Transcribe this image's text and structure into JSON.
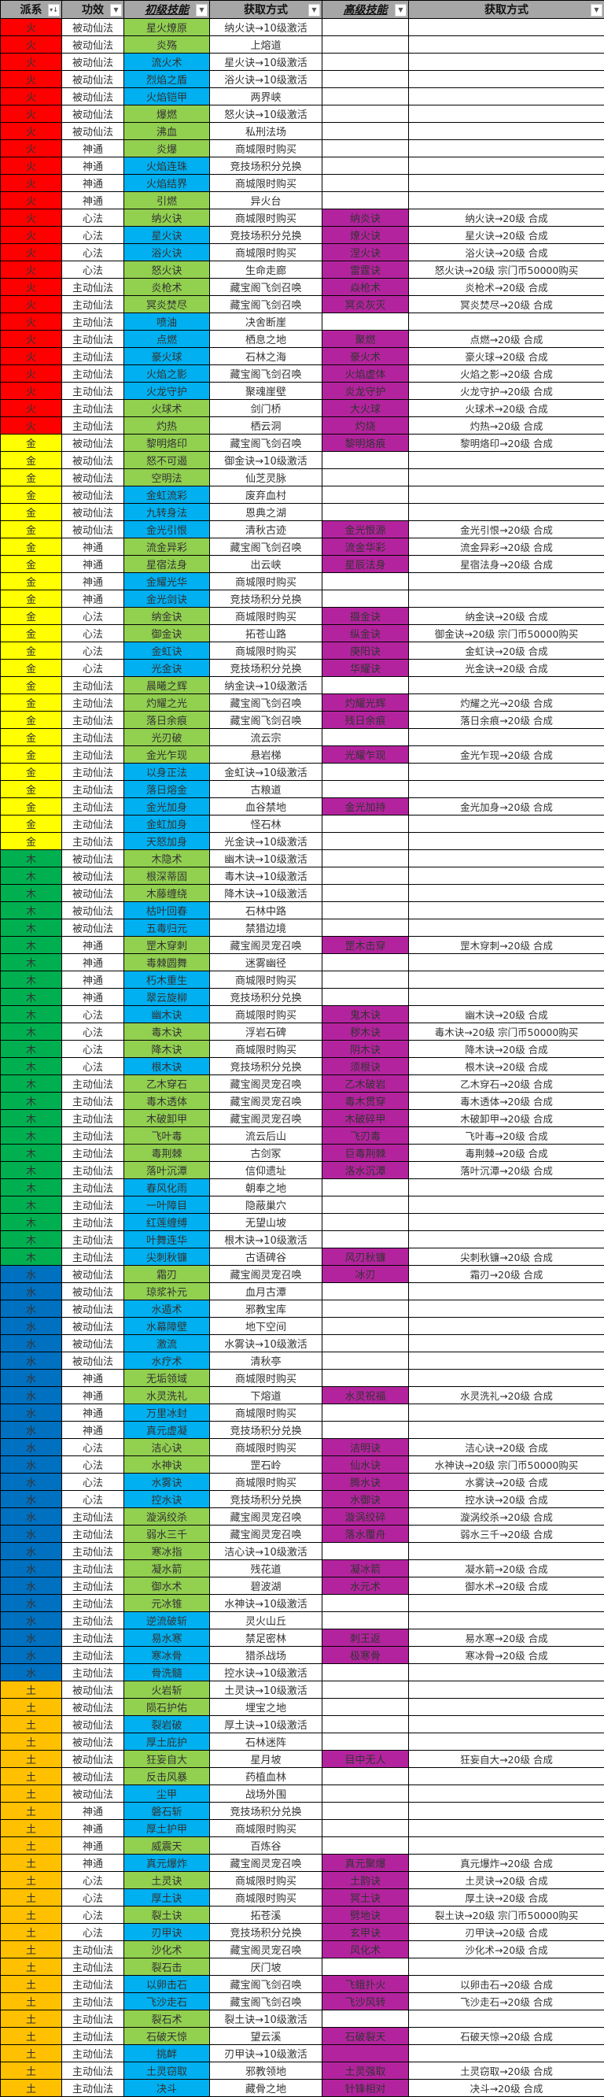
{
  "header": [
    "派系",
    "功效",
    "初级技能",
    "获取方式",
    "高级技能",
    "获取方式"
  ],
  "header_icons": [
    "sort-filter-icon",
    "dropdown-arrow-icon",
    "dropdown-arrow-icon",
    "dropdown-arrow-icon",
    "dropdown-arrow-icon",
    "dropdown-arrow-icon"
  ],
  "colors": {
    "header_bg": "#A6A6A6",
    "faction": {
      "火": "#FF0000",
      "金": "#FFFF00",
      "木": "#00B050",
      "水": "#0070C0",
      "土": "#FFC000"
    },
    "skill": {
      "g": "#92D050",
      "b": "#00B0F0"
    },
    "advanced": "#B4239E"
  },
  "rows": [
    [
      "火",
      "被动仙法",
      "星火燎原",
      "g",
      "纳火诀→10级激活",
      "",
      "",
      ""
    ],
    [
      "火",
      "被动仙法",
      "炎殇",
      "g",
      "上熔道",
      "",
      "",
      ""
    ],
    [
      "火",
      "被动仙法",
      "流火术",
      "b",
      "星火诀→10级激活",
      "",
      "",
      ""
    ],
    [
      "火",
      "被动仙法",
      "烈焰之盾",
      "b",
      "浴火诀→10级激活",
      "",
      "",
      ""
    ],
    [
      "火",
      "被动仙法",
      "火焰铠甲",
      "b",
      "两界峡",
      "",
      "",
      ""
    ],
    [
      "火",
      "被动仙法",
      "爆燃",
      "g",
      "怒火诀→10级激活",
      "",
      "",
      ""
    ],
    [
      "火",
      "被动仙法",
      "沸血",
      "g",
      "私刑法场",
      "",
      "",
      ""
    ],
    [
      "火",
      "神通",
      "炎爆",
      "g",
      "商城限时购买",
      "",
      "",
      ""
    ],
    [
      "火",
      "神通",
      "火焰连珠",
      "b",
      "竞技场积分兑换",
      "",
      "",
      ""
    ],
    [
      "火",
      "神通",
      "火焰结界",
      "b",
      "商城限时购买",
      "",
      "",
      ""
    ],
    [
      "火",
      "神通",
      "引燃",
      "g",
      "异火台",
      "",
      "",
      ""
    ],
    [
      "火",
      "心法",
      "纳火诀",
      "g",
      "商城限时购买",
      "纳炎诀",
      "纳火诀→20级 合成",
      "p"
    ],
    [
      "火",
      "心法",
      "星火诀",
      "b",
      "竞技场积分兑换",
      "燎火诀",
      "星火诀→20级 合成",
      "p"
    ],
    [
      "火",
      "心法",
      "浴火诀",
      "b",
      "商城限时购买",
      "涅火诀",
      "浴火诀→20级 合成",
      "p"
    ],
    [
      "火",
      "心法",
      "怒火诀",
      "g",
      "生命走廊",
      "雷霆诀",
      "怒火诀→20级 宗门币50000购买",
      "p"
    ],
    [
      "火",
      "主动仙法",
      "炎枪术",
      "g",
      "藏宝阁飞剑召唤",
      "焱枪术",
      "炎枪术→20级 合成",
      "p"
    ],
    [
      "火",
      "主动仙法",
      "冥炎焚尽",
      "g",
      "藏宝阁飞剑召唤",
      "冥炎灰灭",
      "冥炎焚尽→20级 合成",
      "p"
    ],
    [
      "火",
      "主动仙法",
      "喷油",
      "b",
      "决舍断崖",
      "",
      "",
      ""
    ],
    [
      "火",
      "主动仙法",
      "点燃",
      "b",
      "栖息之地",
      "聚燃",
      "点燃→20级 合成",
      "p"
    ],
    [
      "火",
      "主动仙法",
      "豪火球",
      "b",
      "石林之海",
      "豪火术",
      "豪火球→20级 合成",
      "p"
    ],
    [
      "火",
      "主动仙法",
      "火焰之影",
      "b",
      "藏宝阁飞剑召唤",
      "火焰虚体",
      "火焰之影→20级 合成",
      "p"
    ],
    [
      "火",
      "主动仙法",
      "火龙守护",
      "b",
      "聚魂崖壁",
      "炎龙守护",
      "火龙守护→20级 合成",
      "p"
    ],
    [
      "火",
      "主动仙法",
      "火球术",
      "g",
      "剑门桥",
      "大火球",
      "火球术→20级 合成",
      "p"
    ],
    [
      "火",
      "主动仙法",
      "灼热",
      "g",
      "栖云洞",
      "灼烧",
      "灼热→20级 合成",
      "p"
    ],
    [
      "金",
      "被动仙法",
      "黎明烙印",
      "g",
      "藏宝阁飞剑召唤",
      "黎明烙痕",
      "黎明烙印→20级 合成",
      "p"
    ],
    [
      "金",
      "被动仙法",
      "怒不可遏",
      "g",
      "御金诀→10级激活",
      "",
      "",
      ""
    ],
    [
      "金",
      "被动仙法",
      "空明法",
      "g",
      "仙芝灵脉",
      "",
      "",
      ""
    ],
    [
      "金",
      "被动仙法",
      "金虹流彩",
      "b",
      "废弃血村",
      "",
      "",
      ""
    ],
    [
      "金",
      "被动仙法",
      "九转身法",
      "b",
      "恩典之湖",
      "",
      "",
      ""
    ],
    [
      "金",
      "被动仙法",
      "金光引恨",
      "b",
      "清秋古迹",
      "金光恨源",
      "金光引恨→20级 合成",
      "p"
    ],
    [
      "金",
      "神通",
      "流金异彩",
      "g",
      "藏宝阁飞剑召唤",
      "流金华彩",
      "流金异彩→20级 合成",
      "p"
    ],
    [
      "金",
      "神通",
      "星宿法身",
      "g",
      "出云峡",
      "星辰法身",
      "星宿法身→20级 合成",
      "p"
    ],
    [
      "金",
      "神通",
      "金耀光华",
      "b",
      "商城限时购买",
      "",
      "",
      ""
    ],
    [
      "金",
      "神通",
      "金光剑诀",
      "b",
      "竞技场积分兑换",
      "",
      "",
      ""
    ],
    [
      "金",
      "心法",
      "纳金诀",
      "g",
      "商城限时购买",
      "摄金诀",
      "纳金诀→20级 合成",
      "p"
    ],
    [
      "金",
      "心法",
      "御金诀",
      "g",
      "拓苍山路",
      "纵金诀",
      "御金诀→20级 宗门币50000购买",
      "p"
    ],
    [
      "金",
      "心法",
      "金虹诀",
      "b",
      "商城限时购买",
      "庚阳诀",
      "金虹诀→20级 合成",
      "p"
    ],
    [
      "金",
      "心法",
      "光金诀",
      "b",
      "竞技场积分兑换",
      "华耀诀",
      "光金诀→20级 合成",
      "p"
    ],
    [
      "金",
      "主动仙法",
      "晨曦之辉",
      "g",
      "纳金诀→10级激活",
      "",
      "",
      ""
    ],
    [
      "金",
      "主动仙法",
      "灼耀之光",
      "g",
      "藏宝阁飞剑召唤",
      "灼耀光辉",
      "灼耀之光→20级 合成",
      "p"
    ],
    [
      "金",
      "主动仙法",
      "落日余痕",
      "g",
      "藏宝阁飞剑召唤",
      "残日余痕",
      "落日余痕→20级 合成",
      "p"
    ],
    [
      "金",
      "主动仙法",
      "光刃破",
      "g",
      "流云宗",
      "",
      "",
      ""
    ],
    [
      "金",
      "主动仙法",
      "金光乍现",
      "g",
      "悬岩梯",
      "光耀乍现",
      "金光乍现→20级 合成",
      "p"
    ],
    [
      "金",
      "主动仙法",
      "以身正法",
      "b",
      "金虹诀→10级激活",
      "",
      "",
      ""
    ],
    [
      "金",
      "主动仙法",
      "落日熔金",
      "b",
      "古粮道",
      "",
      "",
      ""
    ],
    [
      "金",
      "主动仙法",
      "金光加身",
      "b",
      "血谷禁地",
      "金光加持",
      "金光加身→20级 合成",
      "p"
    ],
    [
      "金",
      "主动仙法",
      "金虹加身",
      "b",
      "怪石林",
      "",
      "",
      ""
    ],
    [
      "金",
      "主动仙法",
      "天怒加身",
      "b",
      "光金诀→10级激活",
      "",
      "",
      ""
    ],
    [
      "木",
      "被动仙法",
      "木隐术",
      "g",
      "幽木诀→10级激活",
      "",
      "",
      ""
    ],
    [
      "木",
      "被动仙法",
      "根深蒂固",
      "g",
      "毒木诀→10级激活",
      "",
      "",
      ""
    ],
    [
      "木",
      "被动仙法",
      "木藤缠绕",
      "g",
      "降木诀→10级激活",
      "",
      "",
      ""
    ],
    [
      "木",
      "被动仙法",
      "枯叶回春",
      "b",
      "石林中路",
      "",
      "",
      ""
    ],
    [
      "木",
      "被动仙法",
      "五毒归元",
      "b",
      "禁猎边境",
      "",
      "",
      ""
    ],
    [
      "木",
      "神通",
      "罡木穿刺",
      "g",
      "藏宝阁灵宠召唤",
      "罡木击穿",
      "罡木穿刺→20级 合成",
      "p"
    ],
    [
      "木",
      "神通",
      "毒棘圆舞",
      "g",
      "迷雾幽径",
      "",
      "",
      ""
    ],
    [
      "木",
      "神通",
      "朽木重生",
      "b",
      "商城限时购买",
      "",
      "",
      ""
    ],
    [
      "木",
      "神通",
      "翠云旋柳",
      "b",
      "竞技场积分兑换",
      "",
      "",
      ""
    ],
    [
      "木",
      "心法",
      "幽木诀",
      "b",
      "商城限时购买",
      "鬼木诀",
      "幽木诀→20级 合成",
      "p"
    ],
    [
      "木",
      "心法",
      "毒木诀",
      "g",
      "浮岩石碑",
      "秽木诀",
      "毒木诀→20级 宗门币50000购买",
      "p"
    ],
    [
      "木",
      "心法",
      "降木诀",
      "g",
      "商城限时购买",
      "阴木诀",
      "降木诀→20级 合成",
      "p"
    ],
    [
      "木",
      "心法",
      "根木诀",
      "b",
      "竞技场积分兑换",
      "须根诀",
      "根木诀→20级 合成",
      "p"
    ],
    [
      "木",
      "主动仙法",
      "乙木穿石",
      "g",
      "藏宝阁灵宠召唤",
      "乙木破岩",
      "乙木穿石→20级 合成",
      "p"
    ],
    [
      "木",
      "主动仙法",
      "毒木透体",
      "g",
      "藏宝阁灵宠召唤",
      "毒木贯穿",
      "毒木透体→20级 合成",
      "p"
    ],
    [
      "木",
      "主动仙法",
      "木破卸甲",
      "g",
      "藏宝阁灵宠召唤",
      "木破碎甲",
      "木破卸甲→20级 合成",
      "p"
    ],
    [
      "木",
      "主动仙法",
      "飞叶毒",
      "g",
      "流云后山",
      "飞刃毒",
      "飞叶毒→20级 合成",
      "p"
    ],
    [
      "木",
      "主动仙法",
      "毒荆棘",
      "g",
      "古剑冢",
      "巨毒荆棘",
      "毒荆棘→20级 合成",
      "p"
    ],
    [
      "木",
      "主动仙法",
      "落叶沉潭",
      "g",
      "信仰遗址",
      "洛水沉潭",
      "落叶沉潭→20级 合成",
      "p"
    ],
    [
      "木",
      "主动仙法",
      "春风化雨",
      "b",
      "朝奉之地",
      "",
      "",
      ""
    ],
    [
      "木",
      "主动仙法",
      "一叶障目",
      "b",
      "隐蔽巢穴",
      "",
      "",
      ""
    ],
    [
      "木",
      "主动仙法",
      "红莲缠缚",
      "b",
      "无望山坡",
      "",
      "",
      ""
    ],
    [
      "木",
      "主动仙法",
      "叶舞连华",
      "b",
      "根木诀→10级激活",
      "",
      "",
      ""
    ],
    [
      "木",
      "主动仙法",
      "尖刺秋镰",
      "b",
      "古语碑谷",
      "风刃秋镰",
      "尖刺秋镰→20级 合成",
      "p"
    ],
    [
      "水",
      "被动仙法",
      "霜刃",
      "g",
      "藏宝阁灵宠召唤",
      "冰刃",
      "霜刃→20级 合成",
      "p"
    ],
    [
      "水",
      "被动仙法",
      "琼浆补元",
      "g",
      "血月古潭",
      "",
      "",
      ""
    ],
    [
      "水",
      "被动仙法",
      "水遁术",
      "b",
      "邪教宝库",
      "",
      "",
      ""
    ],
    [
      "水",
      "被动仙法",
      "水幕障壁",
      "b",
      "地下空间",
      "",
      "",
      ""
    ],
    [
      "水",
      "被动仙法",
      "激流",
      "b",
      "水雾诀→10级激活",
      "",
      "",
      ""
    ],
    [
      "水",
      "被动仙法",
      "水疗术",
      "b",
      "清秋亭",
      "",
      "",
      ""
    ],
    [
      "水",
      "神通",
      "无垢领域",
      "g",
      "商城限时购买",
      "",
      "",
      ""
    ],
    [
      "水",
      "神通",
      "水灵洗礼",
      "g",
      "下熔道",
      "水灵祝福",
      "水灵洗礼→20级 合成",
      "p"
    ],
    [
      "水",
      "神通",
      "万里冰封",
      "b",
      "商城限时购买",
      "",
      "",
      ""
    ],
    [
      "水",
      "神通",
      "真元虚凝",
      "b",
      "竞技场积分兑换",
      "",
      "",
      ""
    ],
    [
      "水",
      "心法",
      "洁心诀",
      "g",
      "商城限时购买",
      "洁明诀",
      "洁心诀→20级 合成",
      "p"
    ],
    [
      "水",
      "心法",
      "水神诀",
      "g",
      "罡石岭",
      "仙水诀",
      "水神诀→20级 宗门币50000购买",
      "p"
    ],
    [
      "水",
      "心法",
      "水雾诀",
      "b",
      "商城限时购买",
      "腾水诀",
      "水雾诀→20级 合成",
      "p"
    ],
    [
      "水",
      "心法",
      "控水诀",
      "b",
      "竞技场积分兑换",
      "水御诀",
      "控水诀→20级 合成",
      "p"
    ],
    [
      "水",
      "主动仙法",
      "漩涡绞杀",
      "g",
      "藏宝阁灵宠召唤",
      "漩涡绞碎",
      "漩涡绞杀→20级 合成",
      "p"
    ],
    [
      "水",
      "主动仙法",
      "弱水三千",
      "g",
      "藏宝阁灵宠召唤",
      "落水覆舟",
      "弱水三千→20级 合成",
      "p"
    ],
    [
      "水",
      "主动仙法",
      "寒冰指",
      "g",
      "洁心诀→10级激活",
      "",
      "",
      ""
    ],
    [
      "水",
      "主动仙法",
      "凝水箭",
      "g",
      "残花道",
      "凝冰箭",
      "凝水箭→20级 合成",
      "p"
    ],
    [
      "水",
      "主动仙法",
      "御水术",
      "g",
      "碧波湖",
      "水元术",
      "御水术→20级 合成",
      "p"
    ],
    [
      "水",
      "主动仙法",
      "元冰锥",
      "g",
      "水神诀→10级激活",
      "",
      "",
      ""
    ],
    [
      "水",
      "主动仙法",
      "逆流破斩",
      "b",
      "灵火山丘",
      "",
      "",
      ""
    ],
    [
      "水",
      "主动仙法",
      "易水寒",
      "b",
      "禁足密林",
      "刺王返",
      "易水寒→20级 合成",
      "p"
    ],
    [
      "水",
      "主动仙法",
      "寒冰骨",
      "b",
      "猎杀战场",
      "极寒骨",
      "寒冰骨→20级 合成",
      "p"
    ],
    [
      "水",
      "主动仙法",
      "骨洗髓",
      "b",
      "控水诀→10级激活",
      "",
      "",
      ""
    ],
    [
      "土",
      "被动仙法",
      "火岩斩",
      "g",
      "土灵诀→10级激活",
      "",
      "",
      ""
    ],
    [
      "土",
      "被动仙法",
      "陨石护佑",
      "g",
      "埋宝之地",
      "",
      "",
      ""
    ],
    [
      "土",
      "被动仙法",
      "裂岩破",
      "b",
      "厚土诀→10级激活",
      "",
      "",
      ""
    ],
    [
      "土",
      "被动仙法",
      "厚土庇护",
      "b",
      "石林迷阵",
      "",
      "",
      ""
    ],
    [
      "土",
      "被动仙法",
      "狂妄自大",
      "g",
      "星月坡",
      "目中无人",
      "狂妄自大→20级 合成",
      "p"
    ],
    [
      "土",
      "被动仙法",
      "反击风暴",
      "g",
      "药植血林",
      "",
      "",
      ""
    ],
    [
      "土",
      "被动仙法",
      "尘甲",
      "b",
      "战场外围",
      "",
      "",
      ""
    ],
    [
      "土",
      "神通",
      "磐石斩",
      "b",
      "竞技场积分兑换",
      "",
      "",
      ""
    ],
    [
      "土",
      "神通",
      "厚土护甲",
      "b",
      "商城限时购买",
      "",
      "",
      ""
    ],
    [
      "土",
      "神通",
      "威震天",
      "g",
      "百炼谷",
      "",
      "",
      ""
    ],
    [
      "土",
      "神通",
      "真元爆炸",
      "b",
      "藏宝阁灵宠召唤",
      "真元聚爆",
      "真元爆炸→20级 合成",
      "p"
    ],
    [
      "土",
      "心法",
      "土灵诀",
      "g",
      "商城限时购买",
      "土韵诀",
      "土灵诀→20级 合成",
      "p"
    ],
    [
      "土",
      "心法",
      "厚土诀",
      "b",
      "商城限时购买",
      "冥土诀",
      "厚土诀→20级 合成",
      "p"
    ],
    [
      "土",
      "心法",
      "裂土诀",
      "g",
      "拓苍溪",
      "劈地诀",
      "裂土诀→20级 宗门币50000购买",
      "p"
    ],
    [
      "土",
      "心法",
      "刃甲诀",
      "b",
      "竞技场积分兑换",
      "玄甲诀",
      "刃甲诀→20级 合成",
      "p"
    ],
    [
      "土",
      "主动仙法",
      "沙化术",
      "g",
      "藏宝阁灵宠召唤",
      "风化术",
      "沙化术→20级 合成",
      "p"
    ],
    [
      "土",
      "主动仙法",
      "裂石击",
      "g",
      "厌门坡",
      "",
      "",
      ""
    ],
    [
      "土",
      "主动仙法",
      "以卵击石",
      "b",
      "藏宝阁飞剑召唤",
      "飞蛾扑火",
      "以卵击石→20级 合成",
      "p"
    ],
    [
      "土",
      "主动仙法",
      "飞沙走石",
      "b",
      "藏宝阁飞剑召唤",
      "飞沙风转",
      "飞沙走石→20级 合成",
      "p"
    ],
    [
      "土",
      "主动仙法",
      "裂石术",
      "g",
      "裂土诀→10级激活",
      "",
      "",
      ""
    ],
    [
      "土",
      "主动仙法",
      "石破天惊",
      "g",
      "望云溪",
      "石破裂天",
      "石破天惊→20级 合成",
      "p"
    ],
    [
      "土",
      "主动仙法",
      "挑衅",
      "b",
      "刃甲诀→10级激活",
      "",
      "",
      "p"
    ],
    [
      "土",
      "主动仙法",
      "土灵窃取",
      "b",
      "邪教领地",
      "土灵强取",
      "土灵窃取→20级 合成",
      "p"
    ],
    [
      "土",
      "主动仙法",
      "决斗",
      "b",
      "藏骨之地",
      "针锋相对",
      "决斗→20级 合成",
      "p"
    ]
  ]
}
